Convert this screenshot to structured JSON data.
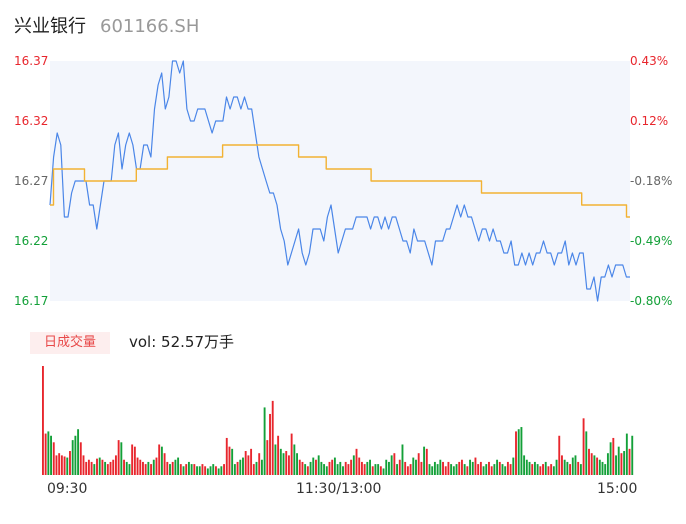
{
  "header": {
    "name": "兴业银行",
    "code": "601166.SH"
  },
  "colors": {
    "up": "#e8262d",
    "down": "#13a038",
    "price_line": "#4a86e8",
    "avg_line": "#f2b233",
    "area": "#f3f6fc"
  },
  "chart_data": [
    {
      "type": "line",
      "title": "",
      "y_left_ticks": [
        "16.37",
        "16.32",
        "16.27",
        "16.22",
        "16.17"
      ],
      "y_right_ticks": [
        "0.43%",
        "0.12%",
        "-0.18%",
        "-0.49%",
        "-0.80%"
      ],
      "ylim": [
        16.17,
        16.37
      ],
      "x_ticks": [
        "09:30",
        "11:30/13:00",
        "15:00"
      ],
      "series": [
        {
          "key": "price",
          "values": [
            16.25,
            16.29,
            16.31,
            16.3,
            16.24,
            16.24,
            16.26,
            16.27,
            16.27,
            16.27,
            16.27,
            16.25,
            16.25,
            16.23,
            16.25,
            16.27,
            16.27,
            16.27,
            16.3,
            16.31,
            16.28,
            16.3,
            16.31,
            16.3,
            16.28,
            16.28,
            16.3,
            16.3,
            16.29,
            16.33,
            16.35,
            16.36,
            16.33,
            16.34,
            16.37,
            16.37,
            16.36,
            16.37,
            16.33,
            16.32,
            16.32,
            16.33,
            16.33,
            16.33,
            16.32,
            16.31,
            16.32,
            16.32,
            16.32,
            16.34,
            16.33,
            16.34,
            16.34,
            16.33,
            16.34,
            16.33,
            16.33,
            16.31,
            16.29,
            16.28,
            16.27,
            16.26,
            16.26,
            16.25,
            16.23,
            16.22,
            16.2,
            16.21,
            16.22,
            16.23,
            16.21,
            16.2,
            16.21,
            16.23,
            16.23,
            16.23,
            16.22,
            16.24,
            16.25,
            16.23,
            16.21,
            16.22,
            16.23,
            16.23,
            16.23,
            16.24,
            16.24,
            16.24,
            16.24,
            16.23,
            16.24,
            16.24,
            16.23,
            16.24,
            16.23,
            16.24,
            16.24,
            16.23,
            16.22,
            16.22,
            16.21,
            16.23,
            16.22,
            16.22,
            16.22,
            16.21,
            16.2,
            16.22,
            16.22,
            16.22,
            16.23,
            16.23,
            16.24,
            16.25,
            16.24,
            16.25,
            16.24,
            16.24,
            16.23,
            16.22,
            16.23,
            16.23,
            16.22,
            16.23,
            16.22,
            16.22,
            16.21,
            16.21,
            16.22,
            16.2,
            16.2,
            16.21,
            16.2,
            16.21,
            16.2,
            16.21,
            16.21,
            16.22,
            16.21,
            16.21,
            16.2,
            16.21,
            16.21,
            16.22,
            16.2,
            16.21,
            16.2,
            16.21,
            16.21,
            16.18,
            16.18,
            16.19,
            16.17,
            16.19,
            16.19,
            16.2,
            16.19,
            16.2,
            16.2,
            16.2,
            16.19,
            16.19
          ]
        },
        {
          "key": "average",
          "values": [
            16.25,
            16.28,
            16.28,
            16.28,
            16.28,
            16.28,
            16.28,
            16.28,
            16.28,
            16.28,
            16.27,
            16.27,
            16.27,
            16.27,
            16.27,
            16.27,
            16.27,
            16.27,
            16.27,
            16.27,
            16.27,
            16.27,
            16.27,
            16.27,
            16.27,
            16.28,
            16.28,
            16.28,
            16.28,
            16.28,
            16.28,
            16.28,
            16.28,
            16.28,
            16.29,
            16.29,
            16.29,
            16.29,
            16.29,
            16.29,
            16.29,
            16.29,
            16.29,
            16.29,
            16.29,
            16.29,
            16.29,
            16.29,
            16.29,
            16.29,
            16.3,
            16.3,
            16.3,
            16.3,
            16.3,
            16.3,
            16.3,
            16.3,
            16.3,
            16.3,
            16.3,
            16.3,
            16.3,
            16.3,
            16.3,
            16.3,
            16.3,
            16.3,
            16.3,
            16.3,
            16.3,
            16.3,
            16.29,
            16.29,
            16.29,
            16.29,
            16.29,
            16.29,
            16.29,
            16.29,
            16.28,
            16.28,
            16.28,
            16.28,
            16.28,
            16.28,
            16.28,
            16.28,
            16.28,
            16.28,
            16.28,
            16.28,
            16.28,
            16.27,
            16.27,
            16.27,
            16.27,
            16.27,
            16.27,
            16.27,
            16.27,
            16.27,
            16.27,
            16.27,
            16.27,
            16.27,
            16.27,
            16.27,
            16.27,
            16.27,
            16.27,
            16.27,
            16.27,
            16.27,
            16.27,
            16.27,
            16.27,
            16.27,
            16.27,
            16.27,
            16.27,
            16.27,
            16.27,
            16.27,
            16.27,
            16.26,
            16.26,
            16.26,
            16.26,
            16.26,
            16.26,
            16.26,
            16.26,
            16.26,
            16.26,
            16.26,
            16.26,
            16.26,
            16.26,
            16.26,
            16.26,
            16.26,
            16.26,
            16.26,
            16.26,
            16.26,
            16.26,
            16.26,
            16.26,
            16.26,
            16.26,
            16.26,
            16.26,
            16.26,
            16.25,
            16.25,
            16.25,
            16.25,
            16.25,
            16.25,
            16.25,
            16.25,
            16.25,
            16.25,
            16.25,
            16.25,
            16.25,
            16.24,
            16.24
          ]
        }
      ]
    },
    {
      "type": "bar",
      "title": "",
      "badge": "日成交量",
      "vol_text": "vol: 52.57万手",
      "ylim": [
        0,
        100
      ],
      "values": [
        100,
        38,
        40,
        36,
        30,
        18,
        20,
        18,
        17,
        16,
        22,
        32,
        36,
        42,
        30,
        18,
        12,
        14,
        12,
        10,
        15,
        16,
        14,
        12,
        10,
        12,
        14,
        18,
        32,
        30,
        14,
        12,
        10,
        28,
        26,
        16,
        14,
        12,
        10,
        12,
        10,
        14,
        16,
        28,
        26,
        20,
        12,
        10,
        12,
        14,
        16,
        10,
        8,
        10,
        12,
        10,
        10,
        8,
        8,
        10,
        8,
        6,
        8,
        10,
        8,
        6,
        8,
        10,
        34,
        26,
        24,
        10,
        12,
        14,
        16,
        22,
        18,
        24,
        10,
        12,
        20,
        14,
        62,
        32,
        56,
        68,
        28,
        36,
        24,
        20,
        22,
        18,
        38,
        28,
        20,
        14,
        12,
        10,
        8,
        12,
        16,
        14,
        18,
        12,
        10,
        8,
        12,
        14,
        16,
        10,
        12,
        8,
        12,
        10,
        14,
        18,
        24,
        16,
        12,
        10,
        12,
        14,
        8,
        10,
        10,
        8,
        6,
        14,
        12,
        18,
        20,
        10,
        14,
        28,
        12,
        8,
        10,
        16,
        14,
        20,
        12,
        26,
        24,
        10,
        8,
        12,
        10,
        14,
        12,
        8,
        12,
        10,
        8,
        10,
        12,
        14,
        10,
        8,
        14,
        12,
        16,
        10,
        12,
        8,
        10,
        12,
        8,
        10,
        14,
        12,
        10,
        8,
        12,
        10,
        16,
        40,
        42,
        44,
        18,
        14,
        12,
        10,
        12,
        10,
        8,
        10,
        12,
        8,
        10,
        8,
        14,
        36,
        18,
        14,
        12,
        10,
        16,
        18,
        12,
        10,
        52,
        40,
        24,
        20,
        18,
        16,
        14,
        12,
        10,
        20,
        30,
        34,
        18,
        26,
        20,
        22,
        38,
        24,
        36
      ],
      "directions": [
        "u",
        "u",
        "d",
        "d",
        "u",
        "u",
        "u",
        "u",
        "u",
        "d",
        "u",
        "d",
        "d",
        "d",
        "u",
        "u",
        "u",
        "u",
        "u",
        "d",
        "u",
        "d",
        "u",
        "d",
        "u",
        "u",
        "u",
        "u",
        "u",
        "d",
        "u",
        "d",
        "d",
        "u",
        "u",
        "u",
        "u",
        "u",
        "u",
        "d",
        "u",
        "d",
        "u",
        "u",
        "d",
        "u",
        "u",
        "d",
        "u",
        "d",
        "d",
        "u",
        "d",
        "u",
        "d",
        "d",
        "u",
        "d",
        "d",
        "u",
        "u",
        "d",
        "d",
        "d",
        "u",
        "d",
        "d",
        "u",
        "u",
        "u",
        "d",
        "d",
        "u",
        "d",
        "d",
        "u",
        "u",
        "u",
        "u",
        "d",
        "u",
        "d",
        "d",
        "u",
        "u",
        "u",
        "d",
        "u",
        "d",
        "d",
        "u",
        "u",
        "u",
        "d",
        "d",
        "u",
        "u",
        "d",
        "u",
        "d",
        "d",
        "u",
        "d",
        "d",
        "d",
        "d",
        "u",
        "u",
        "d",
        "d",
        "d",
        "d",
        "u",
        "u",
        "u",
        "d",
        "u",
        "u",
        "u",
        "u",
        "d",
        "d",
        "u",
        "d",
        "d",
        "u",
        "d",
        "d",
        "d",
        "d",
        "u",
        "d",
        "u",
        "d",
        "u",
        "u",
        "u",
        "d",
        "d",
        "u",
        "u",
        "d",
        "u",
        "d",
        "d",
        "d",
        "d",
        "d",
        "u",
        "u",
        "u",
        "d",
        "d",
        "d",
        "u",
        "u",
        "d",
        "u",
        "d",
        "d",
        "u",
        "u",
        "u",
        "d",
        "d",
        "u",
        "u",
        "d",
        "d",
        "u",
        "d",
        "d",
        "u",
        "u",
        "d",
        "u",
        "d",
        "d",
        "d",
        "d",
        "d",
        "u",
        "d",
        "d",
        "u",
        "u",
        "d",
        "u",
        "u",
        "d",
        "d",
        "u",
        "u",
        "d",
        "d",
        "u",
        "d",
        "d",
        "u",
        "d",
        "u",
        "d",
        "u",
        "u",
        "d",
        "u",
        "d",
        "d",
        "d",
        "d",
        "d",
        "u",
        "d",
        "d",
        "u",
        "d",
        "d",
        "u",
        "d",
        "u",
        "u",
        "d"
      ]
    }
  ]
}
